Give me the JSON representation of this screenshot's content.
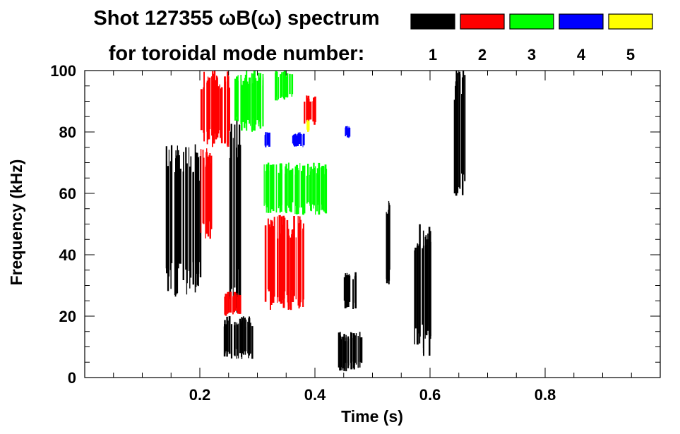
{
  "chart_data": {
    "type": "heatmap",
    "title": "Shot 127355 ωB(ω) spectrum",
    "subtitle": "for toroidal mode number:",
    "xlabel": "Time (s)",
    "ylabel": "Frequency (kHz)",
    "xlim": [
      0.0,
      1.0
    ],
    "ylim": [
      0,
      100
    ],
    "x_ticks": [
      {
        "value": 0.2,
        "label": "0.2"
      },
      {
        "value": 0.4,
        "label": "0.4"
      },
      {
        "value": 0.6,
        "label": "0.6"
      },
      {
        "value": 0.8,
        "label": "0.8"
      }
    ],
    "y_ticks": [
      {
        "value": 0,
        "label": "0"
      },
      {
        "value": 20,
        "label": "20"
      },
      {
        "value": 40,
        "label": "40"
      },
      {
        "value": 60,
        "label": "60"
      },
      {
        "value": 80,
        "label": "80"
      },
      {
        "value": 100,
        "label": "100"
      }
    ],
    "x_minor_step": 0.05,
    "y_minor_step": 5,
    "legend": [
      {
        "label": "1",
        "color": "#000000"
      },
      {
        "label": "2",
        "color": "#ff0000"
      },
      {
        "label": "3",
        "color": "#00ff00"
      },
      {
        "label": "4",
        "color": "#0000ff"
      },
      {
        "label": "5",
        "color": "#ffff00"
      }
    ],
    "legend_placement": "top-right",
    "grid": false,
    "regions": [
      {
        "mode": "1",
        "t": [
          0.14,
          0.2
        ],
        "f": [
          26,
          76
        ]
      },
      {
        "mode": "1",
        "t": [
          0.24,
          0.29
        ],
        "f": [
          6,
          20
        ]
      },
      {
        "mode": "1",
        "t": [
          0.25,
          0.27
        ],
        "f": [
          20,
          85
        ]
      },
      {
        "mode": "1",
        "t": [
          0.44,
          0.48
        ],
        "f": [
          2,
          15
        ]
      },
      {
        "mode": "1",
        "t": [
          0.45,
          0.47
        ],
        "f": [
          22,
          35
        ]
      },
      {
        "mode": "1",
        "t": [
          0.57,
          0.6
        ],
        "f": [
          7,
          50
        ]
      },
      {
        "mode": "1",
        "t": [
          0.64,
          0.66
        ],
        "f": [
          58,
          100
        ]
      },
      {
        "mode": "1",
        "t": [
          0.52,
          0.53
        ],
        "f": [
          30,
          60
        ]
      },
      {
        "mode": "2",
        "t": [
          0.31,
          0.38
        ],
        "f": [
          22,
          53
        ]
      },
      {
        "mode": "2",
        "t": [
          0.2,
          0.25
        ],
        "f": [
          75,
          100
        ]
      },
      {
        "mode": "2",
        "t": [
          0.38,
          0.4
        ],
        "f": [
          82,
          92
        ]
      },
      {
        "mode": "2",
        "t": [
          0.24,
          0.27
        ],
        "f": [
          20,
          28
        ]
      },
      {
        "mode": "2",
        "t": [
          0.2,
          0.22
        ],
        "f": [
          45,
          75
        ]
      },
      {
        "mode": "3",
        "t": [
          0.31,
          0.42
        ],
        "f": [
          53,
          70
        ]
      },
      {
        "mode": "3",
        "t": [
          0.33,
          0.36
        ],
        "f": [
          90,
          100
        ]
      },
      {
        "mode": "3",
        "t": [
          0.26,
          0.31
        ],
        "f": [
          80,
          100
        ]
      },
      {
        "mode": "4",
        "t": [
          0.31,
          0.32
        ],
        "f": [
          75,
          80
        ]
      },
      {
        "mode": "4",
        "t": [
          0.36,
          0.38
        ],
        "f": [
          75,
          80
        ]
      },
      {
        "mode": "4",
        "t": [
          0.45,
          0.46
        ],
        "f": [
          78,
          82
        ]
      },
      {
        "mode": "5",
        "t": [
          0.385,
          0.39
        ],
        "f": [
          80,
          84
        ]
      }
    ]
  }
}
